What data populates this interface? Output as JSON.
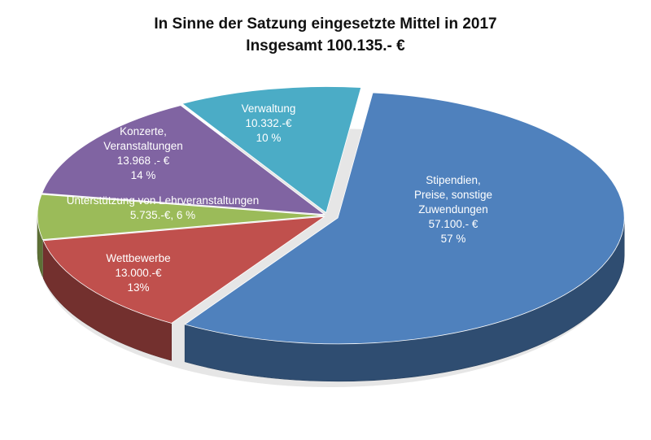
{
  "chart_data": {
    "type": "pie",
    "title": "In Sinne der Satzung eingesetzte Mittel in 2017",
    "subtitle": "Insgesamt 100.135.- €",
    "slices": [
      {
        "name": "Stipendien, Preise, sonstige Zuwendungen",
        "value": 57100,
        "percent": 57,
        "color": "#4f81bd",
        "label_lines": [
          "Stipendien,",
          "Preise, sonstige",
          "Zuwendungen",
          "57.100.- €",
          "57 %"
        ]
      },
      {
        "name": "Wettbewerbe",
        "value": 13000,
        "percent": 13,
        "color": "#c0504d",
        "label_lines": [
          "Wettbewerbe",
          "13.000.-€",
          "13%"
        ]
      },
      {
        "name": "Unterstützung von Lehrveranstaltungen",
        "value": 5735,
        "percent": 6,
        "color": "#9bbb59",
        "label_lines": [
          "Unterstützung von Lehrveranstaltungen",
          "5.735.-€, 6 %"
        ]
      },
      {
        "name": "Konzerte, Veranstaltungen",
        "value": 13968,
        "percent": 14,
        "color": "#8064a2",
        "label_lines": [
          "Konzerte,",
          "Veranstaltungen",
          "13.968 .- €",
          "14 %"
        ]
      },
      {
        "name": "Verwaltung",
        "value": 10332,
        "percent": 10,
        "color": "#4bacc6",
        "label_lines": [
          "Verwaltung",
          "10.332.-€",
          "10 %"
        ]
      }
    ]
  }
}
